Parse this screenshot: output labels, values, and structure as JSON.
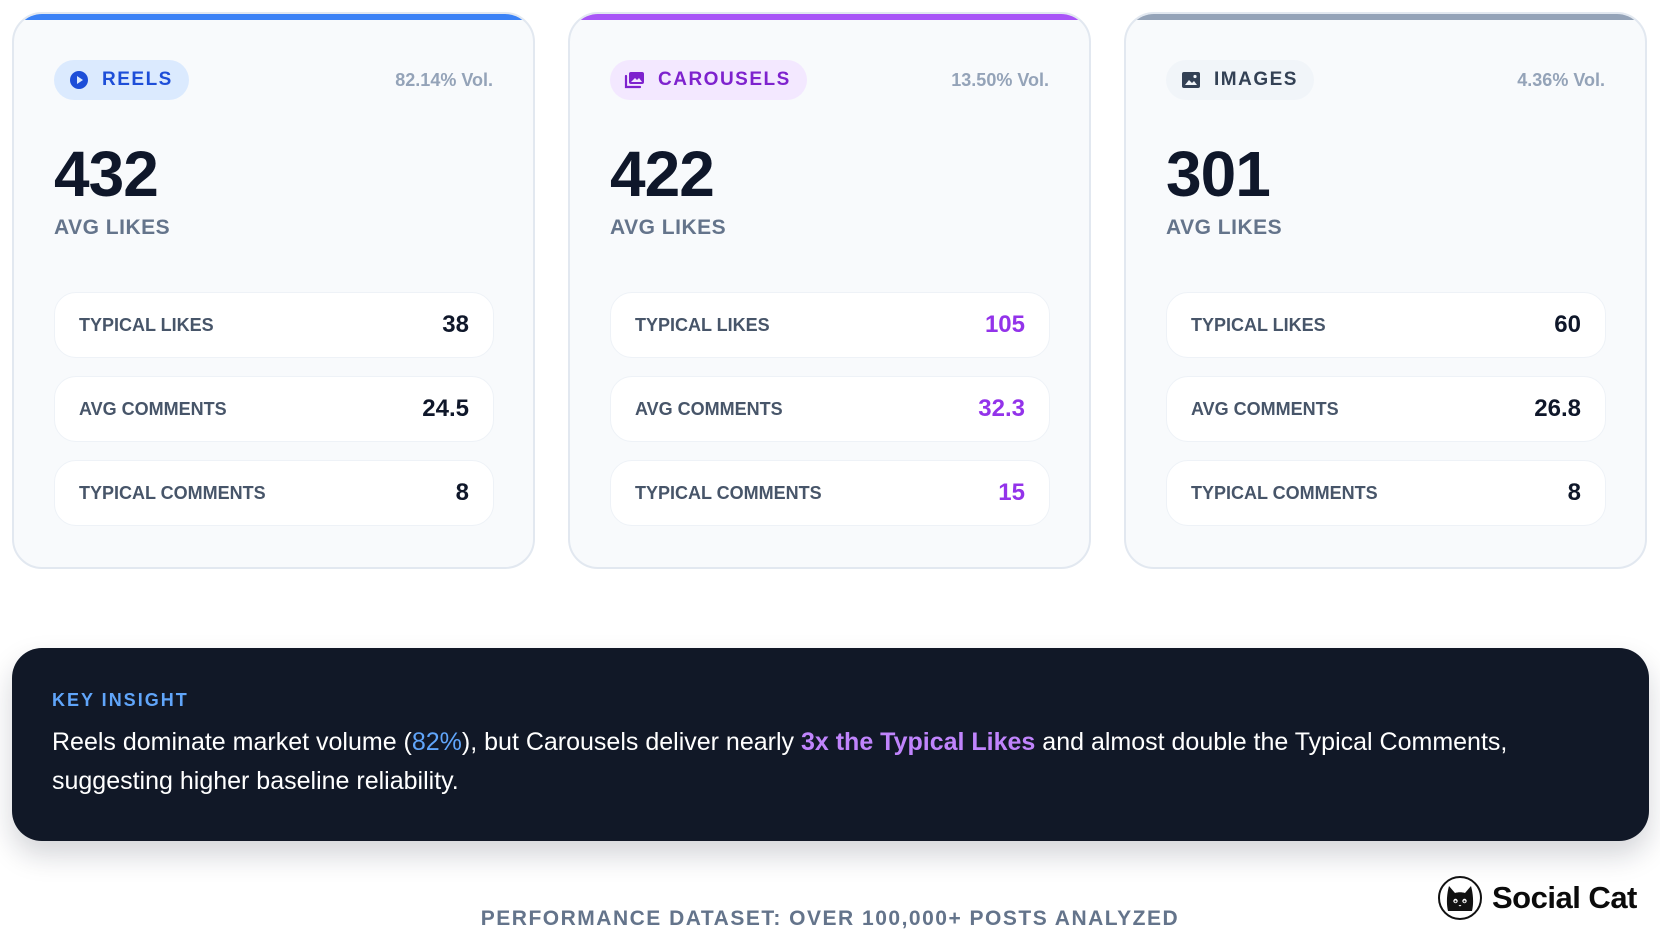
{
  "cards": [
    {
      "type": "REELS",
      "volume": "82.14% Vol.",
      "avg_likes": "432",
      "avg_likes_label": "AVG LIKES",
      "stats": [
        {
          "label": "TYPICAL LIKES",
          "value": "38"
        },
        {
          "label": "AVG COMMENTS",
          "value": "24.5"
        },
        {
          "label": "TYPICAL COMMENTS",
          "value": "8"
        }
      ],
      "accent": "#3b82f6",
      "icon": "play-circle-icon"
    },
    {
      "type": "CAROUSELS",
      "volume": "13.50% Vol.",
      "avg_likes": "422",
      "avg_likes_label": "AVG LIKES",
      "stats": [
        {
          "label": "TYPICAL LIKES",
          "value": "105"
        },
        {
          "label": "AVG COMMENTS",
          "value": "32.3"
        },
        {
          "label": "TYPICAL COMMENTS",
          "value": "15"
        }
      ],
      "accent": "#a855f7",
      "icon": "photo-library-icon"
    },
    {
      "type": "IMAGES",
      "volume": "4.36% Vol.",
      "avg_likes": "301",
      "avg_likes_label": "AVG LIKES",
      "stats": [
        {
          "label": "TYPICAL LIKES",
          "value": "60"
        },
        {
          "label": "AVG COMMENTS",
          "value": "26.8"
        },
        {
          "label": "TYPICAL COMMENTS",
          "value": "8"
        }
      ],
      "accent": "#94a3b8",
      "icon": "image-icon"
    }
  ],
  "insight": {
    "label": "KEY INSIGHT",
    "part1": "Reels dominate market volume (",
    "highlight1": "82%",
    "part2": "), but Carousels deliver nearly ",
    "highlight2": "3x the Typical Likes",
    "part3": " and almost double the Typical Comments, suggesting higher baseline reliability."
  },
  "footer": "PERFORMANCE DATASET: OVER 100,000+ POSTS ANALYZED",
  "brand": {
    "name": "Social Cat",
    "logo": "cat-logo-icon"
  }
}
